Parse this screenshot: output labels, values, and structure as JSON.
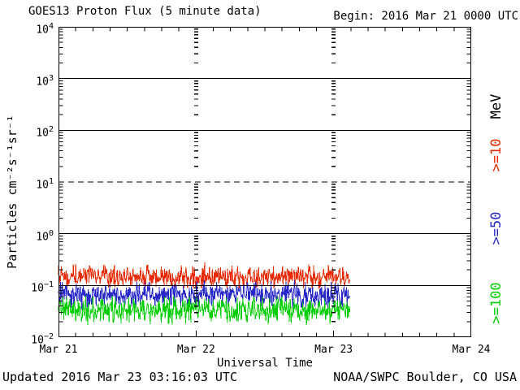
{
  "header": {
    "title": "GOES13 Proton Flux (5 minute data)",
    "begin": "Begin: 2016 Mar 21 0000 UTC"
  },
  "footer": {
    "updated": "Updated 2016 Mar 23 03:16:03 UTC",
    "source": "NOAA/SWPC Boulder, CO USA"
  },
  "chart_data": {
    "type": "line",
    "title": "GOES13 Proton Flux (5 minute data)",
    "xlabel": "Universal Time",
    "ylabel": "Particles cm⁻²s⁻¹sr⁻¹",
    "x_tick_labels": [
      "Mar 21",
      "Mar 22",
      "Mar 23",
      "Mar 24"
    ],
    "x_minor_tick_hours": 3,
    "y_scale": "log10",
    "ylim": [
      0.01,
      10000
    ],
    "y_tick_exponents": [
      4,
      3,
      2,
      1,
      0,
      -1,
      -2
    ],
    "solid_hlines": [
      1000,
      100,
      1,
      0.1
    ],
    "dashed_hlines": [
      10
    ],
    "day_gridlines": [
      "Mar 22",
      "Mar 23"
    ],
    "legend_unit": "MeV",
    "legend_unit_color": "#000000",
    "sample_interval_minutes": 5,
    "data_span_days": 2.12,
    "noise_seed": 20160321,
    "series": [
      {
        "label": ">=10",
        "unit": "MeV",
        "color": "#e62900",
        "typical_flux": 0.14,
        "flux_range": [
          0.085,
          0.33
        ],
        "log10_base": -0.84,
        "log10_amp": 0.26,
        "log10_clamp": [
          -1.06,
          -0.5
        ],
        "spike_prob": 0.012,
        "spike_add": 0.14
      },
      {
        "label": ">=50",
        "unit": "MeV",
        "color": "#2828c8",
        "typical_flux": 0.066,
        "flux_range": [
          0.034,
          0.13
        ],
        "log10_base": -1.18,
        "log10_amp": 0.3,
        "log10_clamp": [
          -1.47,
          -0.88
        ],
        "spike_prob": 0.008,
        "spike_add": 0.1
      },
      {
        "label": ">=100",
        "unit": "MeV",
        "color": "#00cd00",
        "typical_flux": 0.032,
        "flux_range": [
          0.017,
          0.068
        ],
        "log10_base": -1.48,
        "log10_amp": 0.31,
        "log10_clamp": [
          -1.77,
          -1.15
        ],
        "spike_prob": 0.008,
        "spike_add": 0.1
      }
    ]
  }
}
